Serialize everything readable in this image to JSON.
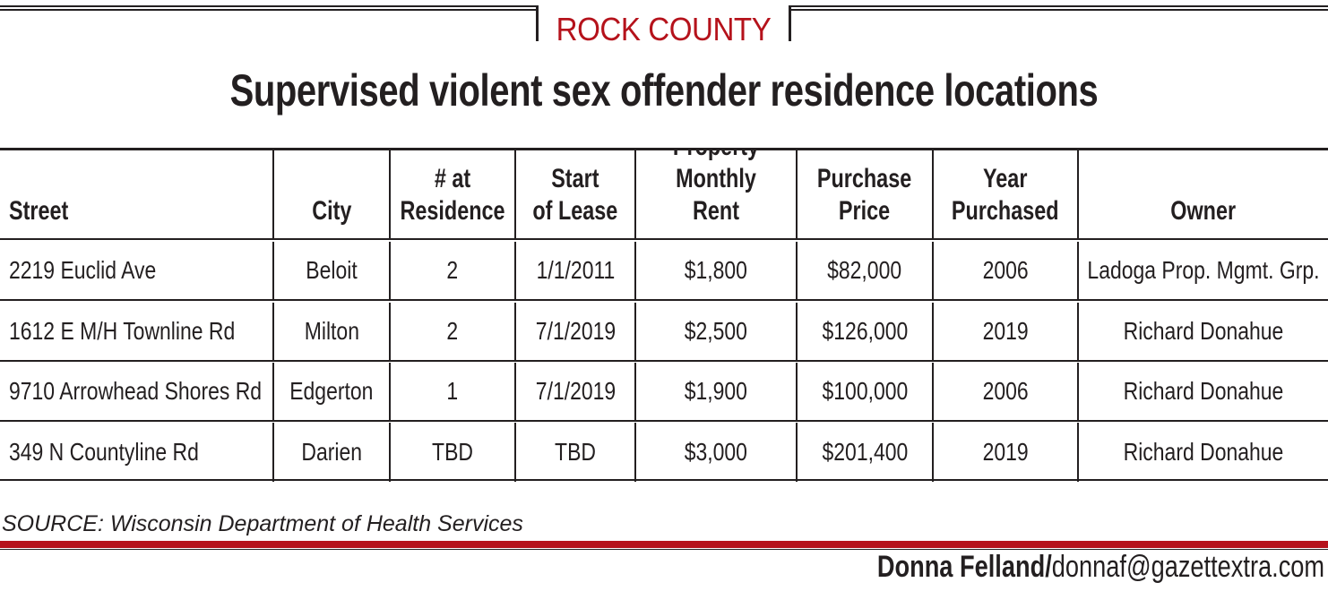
{
  "kicker": "ROCK COUNTY",
  "headline": "Supervised violent sex offender residence locations",
  "table": {
    "headers": [
      "Street",
      "City",
      "# at\nResidence",
      "Start\nof Lease",
      "Property\nMonthly Rent",
      "Purchase\nPrice",
      "Year\nPurchased",
      "Owner"
    ],
    "rows": [
      [
        "2219 Euclid Ave",
        "Beloit",
        "2",
        "1/1/2011",
        "$1,800",
        "$82,000",
        "2006",
        "Ladoga Prop. Mgmt. Grp."
      ],
      [
        "1612 E M/H Townline Rd",
        "Milton",
        "2",
        "7/1/2019",
        "$2,500",
        "$126,000",
        "2019",
        "Richard Donahue"
      ],
      [
        "9710 Arrowhead Shores Rd",
        "Edgerton",
        "1",
        "7/1/2019",
        "$1,900",
        "$100,000",
        "2006",
        "Richard Donahue"
      ],
      [
        "349 N Countyline Rd",
        "Darien",
        "TBD",
        "TBD",
        "$3,000",
        "$201,400",
        "2019",
        "Richard Donahue"
      ]
    ]
  },
  "source": "SOURCE: Wisconsin Department of Health Services",
  "credit": {
    "name": "Donna Felland/",
    "email": "donnaf@gazettextra.com"
  },
  "colors": {
    "accent": "#b5121b",
    "text": "#231f20"
  }
}
